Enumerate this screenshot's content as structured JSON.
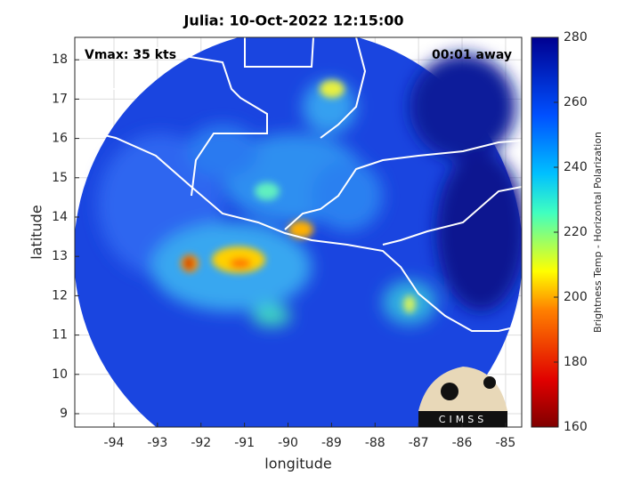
{
  "chart_data": {
    "type": "map",
    "title": "Julia: 10-Oct-2022 12:15:00",
    "xlabel": "longitude",
    "ylabel": "latitude",
    "annotations": [
      "Vmax: 35 kts",
      "00:01 away"
    ],
    "logo": "CIMSS",
    "xlim": [
      -94.9,
      -84.63
    ],
    "ylim": [
      8.66,
      18.57
    ],
    "xticks": [
      -94,
      -93,
      -92,
      -91,
      -90,
      -89,
      -88,
      -87,
      -86,
      -85
    ],
    "yticks": [
      9,
      10,
      11,
      12,
      13,
      14,
      15,
      16,
      17,
      18
    ],
    "grid": true,
    "colorbar": {
      "label": "Brightness Temp - Horizontal Polarization",
      "lim": [
        160,
        280
      ],
      "ticks": [
        160,
        180,
        200,
        220,
        240,
        260,
        280
      ]
    }
  }
}
